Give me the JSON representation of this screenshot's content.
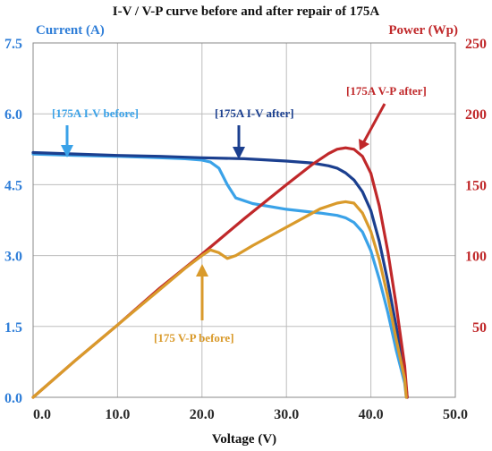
{
  "chart_data": {
    "type": "line",
    "title": "I-V / V-P curve before and after repair of 175A",
    "xlabel": "Voltage (V)",
    "ylabel_left": "Current (A)",
    "ylabel_right": "Power (Wp)",
    "xlim": [
      0,
      50
    ],
    "ylim_left": [
      0,
      7.5
    ],
    "ylim_right": [
      0,
      250
    ],
    "x_ticks": [
      "0.0",
      "10.0",
      "20.0",
      "30.0",
      "40.0",
      "50.0"
    ],
    "y_left_ticks": [
      "0.0",
      "1.5",
      "3.0",
      "4.5",
      "6.0",
      "7.5"
    ],
    "y_right_ticks": [
      "50",
      "100",
      "150",
      "200",
      "250"
    ],
    "grid": true,
    "series": [
      {
        "name": "175A I-V before",
        "axis": "left",
        "color": "#3aa2e8",
        "x": [
          0,
          5,
          10,
          15,
          18,
          20,
          21,
          22,
          23,
          24,
          26,
          30,
          34,
          36,
          37,
          38,
          39,
          40,
          41,
          42,
          43,
          44,
          44.2
        ],
        "y": [
          5.15,
          5.12,
          5.1,
          5.07,
          5.05,
          5.02,
          4.98,
          4.85,
          4.5,
          4.22,
          4.1,
          3.98,
          3.9,
          3.85,
          3.8,
          3.7,
          3.5,
          3.1,
          2.5,
          1.8,
          1.0,
          0.3,
          0.0
        ]
      },
      {
        "name": "175A I-V after",
        "axis": "left",
        "color": "#1b3f8f",
        "x": [
          0,
          5,
          10,
          15,
          20,
          25,
          30,
          33,
          35,
          36,
          37,
          38,
          39,
          40,
          41,
          42,
          43,
          44,
          44.3
        ],
        "y": [
          5.18,
          5.15,
          5.12,
          5.1,
          5.07,
          5.05,
          5.0,
          4.96,
          4.9,
          4.85,
          4.75,
          4.6,
          4.35,
          3.95,
          3.3,
          2.45,
          1.5,
          0.5,
          0.0
        ]
      },
      {
        "name": "175A V-P after",
        "axis": "right",
        "color": "#c0282a",
        "x": [
          0,
          5,
          10,
          15,
          20,
          25,
          30,
          33,
          35,
          36,
          37,
          38,
          39,
          40,
          41,
          42,
          43,
          44,
          44.3
        ],
        "y": [
          0,
          26,
          51,
          77,
          101,
          126,
          150,
          164,
          172,
          175,
          176,
          175,
          170,
          158,
          135,
          103,
          65,
          22,
          0
        ]
      },
      {
        "name": "175 V-P before",
        "axis": "right",
        "color": "#d99a2b",
        "x": [
          0,
          5,
          10,
          15,
          18,
          20,
          21,
          22,
          23,
          24,
          26,
          30,
          34,
          36,
          37,
          38,
          39,
          40,
          41,
          42,
          43,
          44,
          44.2
        ],
        "y": [
          0,
          26,
          51,
          76,
          91,
          100,
          104,
          102,
          98,
          100,
          107,
          120,
          133,
          137,
          138,
          137,
          130,
          117,
          97,
          71,
          41,
          13,
          0
        ]
      }
    ],
    "annotations": [
      {
        "text": "[175A I-V before]",
        "color": "#3aa2e8"
      },
      {
        "text": "[175A I-V after]",
        "color": "#1b3f8f"
      },
      {
        "text": "[175A V-P after]",
        "color": "#c0282a"
      },
      {
        "text": "[175 V-P before]",
        "color": "#d99a2b"
      }
    ]
  }
}
